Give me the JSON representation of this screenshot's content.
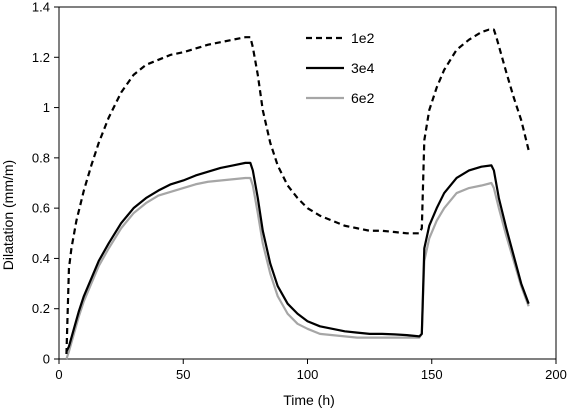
{
  "chart_data": {
    "type": "line",
    "xlabel": "Time (h)",
    "ylabel": "Dilatation (mm/m)",
    "xlim": [
      0,
      200
    ],
    "ylim": [
      0,
      1.4
    ],
    "xticks": [
      "0",
      "50",
      "100",
      "150",
      "200"
    ],
    "yticks": [
      "0",
      "0.2",
      "0.4",
      "0.6",
      "0.8",
      "1",
      "1.2",
      "1.4"
    ],
    "grid": false,
    "legend_placement": "top-center",
    "series": [
      {
        "name": "1e2",
        "style": "dashed",
        "color": "#000000",
        "points": [
          [
            3,
            0.02
          ],
          [
            4,
            0.36
          ],
          [
            5,
            0.44
          ],
          [
            7,
            0.55
          ],
          [
            10,
            0.67
          ],
          [
            13,
            0.77
          ],
          [
            16,
            0.86
          ],
          [
            20,
            0.96
          ],
          [
            25,
            1.06
          ],
          [
            30,
            1.13
          ],
          [
            35,
            1.17
          ],
          [
            40,
            1.19
          ],
          [
            45,
            1.21
          ],
          [
            50,
            1.22
          ],
          [
            55,
            1.235
          ],
          [
            60,
            1.25
          ],
          [
            65,
            1.26
          ],
          [
            70,
            1.27
          ],
          [
            75,
            1.28
          ],
          [
            77,
            1.28
          ],
          [
            78,
            1.24
          ],
          [
            80,
            1.13
          ],
          [
            82,
            0.99
          ],
          [
            85,
            0.86
          ],
          [
            88,
            0.77
          ],
          [
            92,
            0.69
          ],
          [
            96,
            0.64
          ],
          [
            100,
            0.6
          ],
          [
            105,
            0.57
          ],
          [
            110,
            0.55
          ],
          [
            115,
            0.53
          ],
          [
            120,
            0.52
          ],
          [
            125,
            0.51
          ],
          [
            130,
            0.51
          ],
          [
            135,
            0.505
          ],
          [
            140,
            0.5
          ],
          [
            145,
            0.5
          ],
          [
            146,
            0.52
          ],
          [
            147,
            0.87
          ],
          [
            149,
            0.99
          ],
          [
            152,
            1.08
          ],
          [
            155,
            1.15
          ],
          [
            160,
            1.23
          ],
          [
            165,
            1.27
          ],
          [
            170,
            1.3
          ],
          [
            173,
            1.31
          ],
          [
            175,
            1.31
          ],
          [
            176,
            1.28
          ],
          [
            178,
            1.21
          ],
          [
            180,
            1.14
          ],
          [
            183,
            1.04
          ],
          [
            186,
            0.95
          ],
          [
            189,
            0.83
          ]
        ]
      },
      {
        "name": "3e4",
        "style": "solid",
        "color": "#000000",
        "points": [
          [
            3,
            0.03
          ],
          [
            4,
            0.05
          ],
          [
            6,
            0.12
          ],
          [
            8,
            0.19
          ],
          [
            10,
            0.25
          ],
          [
            13,
            0.32
          ],
          [
            16,
            0.39
          ],
          [
            20,
            0.46
          ],
          [
            25,
            0.54
          ],
          [
            30,
            0.6
          ],
          [
            35,
            0.64
          ],
          [
            40,
            0.67
          ],
          [
            45,
            0.695
          ],
          [
            50,
            0.71
          ],
          [
            55,
            0.73
          ],
          [
            60,
            0.745
          ],
          [
            65,
            0.76
          ],
          [
            70,
            0.77
          ],
          [
            75,
            0.78
          ],
          [
            77,
            0.78
          ],
          [
            78,
            0.75
          ],
          [
            80,
            0.64
          ],
          [
            82,
            0.51
          ],
          [
            85,
            0.38
          ],
          [
            88,
            0.29
          ],
          [
            92,
            0.22
          ],
          [
            96,
            0.18
          ],
          [
            100,
            0.15
          ],
          [
            105,
            0.13
          ],
          [
            110,
            0.12
          ],
          [
            115,
            0.11
          ],
          [
            120,
            0.105
          ],
          [
            125,
            0.1
          ],
          [
            130,
            0.1
          ],
          [
            135,
            0.098
          ],
          [
            140,
            0.095
          ],
          [
            145,
            0.09
          ],
          [
            146,
            0.1
          ],
          [
            147,
            0.44
          ],
          [
            149,
            0.53
          ],
          [
            152,
            0.6
          ],
          [
            155,
            0.66
          ],
          [
            160,
            0.72
          ],
          [
            165,
            0.75
          ],
          [
            170,
            0.765
          ],
          [
            174,
            0.77
          ],
          [
            175,
            0.75
          ],
          [
            177,
            0.64
          ],
          [
            180,
            0.52
          ],
          [
            183,
            0.41
          ],
          [
            186,
            0.3
          ],
          [
            189,
            0.22
          ]
        ]
      },
      {
        "name": "6e2",
        "style": "solid",
        "color": "#a6a6a6",
        "points": [
          [
            3,
            0.0
          ],
          [
            4,
            0.03
          ],
          [
            6,
            0.1
          ],
          [
            8,
            0.17
          ],
          [
            10,
            0.23
          ],
          [
            13,
            0.3
          ],
          [
            16,
            0.37
          ],
          [
            20,
            0.44
          ],
          [
            25,
            0.52
          ],
          [
            30,
            0.58
          ],
          [
            35,
            0.62
          ],
          [
            40,
            0.65
          ],
          [
            45,
            0.665
          ],
          [
            50,
            0.68
          ],
          [
            55,
            0.695
          ],
          [
            60,
            0.705
          ],
          [
            65,
            0.71
          ],
          [
            70,
            0.715
          ],
          [
            75,
            0.72
          ],
          [
            77,
            0.72
          ],
          [
            78,
            0.69
          ],
          [
            80,
            0.58
          ],
          [
            82,
            0.46
          ],
          [
            85,
            0.34
          ],
          [
            88,
            0.25
          ],
          [
            92,
            0.18
          ],
          [
            96,
            0.14
          ],
          [
            100,
            0.12
          ],
          [
            105,
            0.1
          ],
          [
            110,
            0.095
          ],
          [
            115,
            0.09
          ],
          [
            120,
            0.085
          ],
          [
            125,
            0.085
          ],
          [
            130,
            0.085
          ],
          [
            135,
            0.085
          ],
          [
            140,
            0.085
          ],
          [
            145,
            0.085
          ],
          [
            146,
            0.1
          ],
          [
            147,
            0.39
          ],
          [
            149,
            0.48
          ],
          [
            152,
            0.55
          ],
          [
            155,
            0.6
          ],
          [
            160,
            0.66
          ],
          [
            165,
            0.68
          ],
          [
            170,
            0.69
          ],
          [
            174,
            0.7
          ],
          [
            175,
            0.68
          ],
          [
            177,
            0.6
          ],
          [
            180,
            0.49
          ],
          [
            183,
            0.39
          ],
          [
            186,
            0.29
          ],
          [
            189,
            0.21
          ]
        ]
      }
    ]
  }
}
